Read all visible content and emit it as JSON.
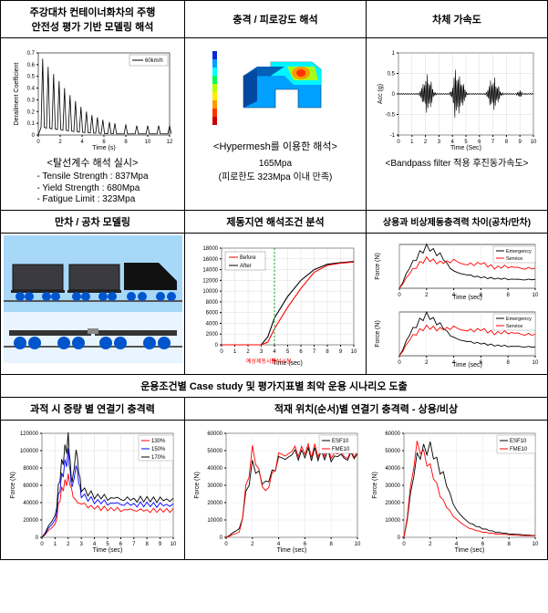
{
  "row1": {
    "c1": {
      "l1": "주강대차 컨테이너화차의 주행",
      "l2": "안전성 평가 기반 모델링 해석"
    },
    "c2": "충격 / 피로강도 해석",
    "c3": "차체 가속도"
  },
  "row2": {
    "c1": {
      "chart": {
        "type": "line",
        "legend": "60km/h",
        "xlabel": "Time (s)",
        "ylabel": "Derailment Coefficient",
        "xlim": [
          0,
          12
        ],
        "ylim": [
          0,
          0.7
        ],
        "xticks": [
          0,
          2,
          4,
          6,
          8,
          10,
          12
        ],
        "yticks": [
          0,
          0.1,
          0.2,
          0.3,
          0.4,
          0.5,
          0.6,
          0.7
        ],
        "peaks_x": [
          0.4,
          0.9,
          1.4,
          1.9,
          2.4,
          2.9,
          3.4,
          3.9,
          4.4,
          4.9,
          5.4,
          5.9,
          6.5,
          7,
          8,
          9,
          10,
          11,
          12
        ],
        "peaks_y": [
          0.65,
          0.58,
          0.52,
          0.46,
          0.4,
          0.34,
          0.29,
          0.24,
          0.2,
          0.17,
          0.15,
          0.13,
          0.11,
          0.1,
          0.09,
          0.08,
          0.08,
          0.08,
          0.08
        ],
        "line_color": "#000000",
        "label_fontsize": 7,
        "tick_fontsize": 6,
        "bg": "#ffffff",
        "grid": false
      },
      "caption": "<탈선계수 해석 실시>",
      "list": [
        "- Tensile Strength : 837Mpa",
        "- Yield Strength : 680Mpa",
        "- Fatigue Limit : 323Mpa"
      ]
    },
    "c2": {
      "fea": {
        "type": "contour-render",
        "bg": "#ffffff",
        "palette": [
          "#062bd6",
          "#00a0ff",
          "#00ffff",
          "#00ff55",
          "#b8ff00",
          "#ffee00",
          "#ff9900",
          "#ff3300",
          "#cc0000"
        ],
        "peak_region_color": "#ff3300",
        "body_color": "#00a0ff"
      },
      "caption": "<Hypermesh를 이용한 해석>",
      "value": "165Mpa",
      "note": "(피로한도 323Mpa 이내 만족)"
    },
    "c3": {
      "chart": {
        "type": "signal",
        "xlabel": "Time (Sec)",
        "ylabel": "Acc (g)",
        "xlim": [
          0,
          10
        ],
        "ylim": [
          -1,
          1
        ],
        "xticks": [
          0,
          1,
          2,
          3,
          4,
          5,
          6,
          7,
          8,
          9,
          10
        ],
        "yticks": [
          -1,
          -0.5,
          0,
          0.5,
          1
        ],
        "baseline": 0,
        "bursts": [
          {
            "t": 1.8,
            "amp": 0.25
          },
          {
            "t": 2.1,
            "amp": 0.55
          },
          {
            "t": 2.4,
            "amp": 0.35
          },
          {
            "t": 4.2,
            "amp": 0.7
          },
          {
            "t": 4.5,
            "amp": 0.5
          },
          {
            "t": 4.8,
            "amp": 0.3
          },
          {
            "t": 6.8,
            "amp": 0.35
          },
          {
            "t": 7.1,
            "amp": 0.45
          },
          {
            "t": 7.4,
            "amp": 0.2
          },
          {
            "t": 9.0,
            "amp": 0.1
          }
        ],
        "line_color": "#000000",
        "label_fontsize": 7,
        "bg": "#ffffff",
        "grid": true,
        "grid_color": "#d0d0d0"
      },
      "caption": "<Bandpass filter 적용 후진동가속도>"
    }
  },
  "row3": {
    "c1": "만차 / 공차 모델링",
    "c2": "제동지연 해석조건 분석",
    "c3": "상용과 비상제동충격력 차이(공차/만차)"
  },
  "row4": {
    "c1": {
      "render": {
        "type": "3d-model-render",
        "sky_color": "#a8d8f8",
        "ground": "#e8f4ff",
        "wagon_color": "#3a3a40",
        "bogie_color": "#0055cc",
        "track_color": "#555555",
        "views": 2
      }
    },
    "c2": {
      "chart": {
        "type": "line",
        "legend": [
          "Before",
          "After"
        ],
        "line_colors": [
          "#ff0000",
          "#000000"
        ],
        "xlabel": "Time (sec)",
        "ylabel": "",
        "xlim": [
          0,
          10
        ],
        "ylim": [
          0,
          18000
        ],
        "xticks": [
          0,
          1,
          2,
          3,
          4,
          5,
          6,
          7,
          8,
          9,
          10
        ],
        "yticks": [
          0,
          2000,
          4000,
          6000,
          8000,
          10000,
          12000,
          14000,
          16000,
          18000
        ],
        "marker_x": 4.0,
        "marker_color": "#00aa00",
        "series1_x": [
          0,
          3.0,
          3.5,
          4,
          5,
          6,
          7,
          8,
          9,
          10
        ],
        "series1_y": [
          0,
          0,
          500,
          3000,
          7000,
          10500,
          13500,
          14800,
          15200,
          15400
        ],
        "series2_x": [
          0,
          3.0,
          3.5,
          4,
          5,
          6,
          7,
          8,
          9,
          10
        ],
        "series2_y": [
          0,
          0,
          1500,
          5000,
          9000,
          12000,
          14000,
          15000,
          15300,
          15500
        ],
        "bg": "#ffffff",
        "grid": true,
        "grid_color": "#d0d0d0",
        "notes_color": "#ff0000",
        "note1": "예상제동시점",
        "note2": "분석시점"
      }
    },
    "c3": {
      "charts": [
        {
          "type": "line",
          "legend": [
            "Emergency",
            "Service"
          ],
          "line_colors": [
            "#000000",
            "#ff0000"
          ],
          "xlabel": "Time (sec)",
          "ylabel": "Force (N)",
          "xlim": [
            0,
            10
          ],
          "ylim": [
            0,
            4000
          ],
          "series1_y": [
            0,
            2500,
            3800,
            3000,
            1500,
            1200,
            1000,
            900,
            850,
            800,
            800
          ],
          "series2_y": [
            0,
            1800,
            2700,
            2300,
            2500,
            2100,
            2300,
            1900,
            2000,
            1850,
            1800
          ],
          "bg": "#ffffff",
          "grid": true,
          "grid_color": "#e0e0e0"
        },
        {
          "type": "line",
          "legend": [
            "Emergency",
            "Service"
          ],
          "line_colors": [
            "#000000",
            "#ff0000"
          ],
          "xlabel": "Time (sec)",
          "ylabel": "Force (N)",
          "xlim": [
            0,
            10
          ],
          "ylim": [
            0,
            5000
          ],
          "series1_y": [
            0,
            3200,
            4700,
            3500,
            2000,
            1600,
            1400,
            1200,
            1100,
            1050,
            1000
          ],
          "series2_y": [
            0,
            2400,
            3300,
            3000,
            3200,
            2800,
            3000,
            2600,
            2700,
            2500,
            2400
          ],
          "bg": "#ffffff",
          "grid": true,
          "grid_color": "#e0e0e0"
        }
      ]
    }
  },
  "row5": {
    "c1": "운용조건별 Case study 및 평가지표별 최악 운용 시나리오 도출"
  },
  "row6": {
    "c1": "과적 시 중량 별 연결기 충격력",
    "c2": "적재 위치(순서)별 연결기 충격력 - 상용/비상"
  },
  "row7": {
    "c1": {
      "chart": {
        "type": "line",
        "legend": [
          "130%",
          "150%",
          "170%"
        ],
        "line_colors": [
          "#ff0000",
          "#0000ff",
          "#000000"
        ],
        "xlabel": "Time (sec)",
        "ylabel": "Force (N)",
        "xlim": [
          0,
          10
        ],
        "ylim": [
          0,
          120000
        ],
        "xticks": [
          0,
          1,
          2,
          3,
          4,
          5,
          6,
          7,
          8,
          9,
          10
        ],
        "yticks": [
          0,
          20000,
          40000,
          60000,
          80000,
          100000,
          120000
        ],
        "series": [
          {
            "x": [
              0,
              1,
              1.5,
              2,
              2.5,
              3,
              4,
              5,
              6,
              7,
              8,
              9,
              10
            ],
            "y": [
              0,
              15000,
              55000,
              68000,
              42000,
              38000,
              34000,
              33000,
              32000,
              32000,
              31000,
              31000,
              31000
            ]
          },
          {
            "x": [
              0,
              1,
              1.5,
              2,
              2.3,
              2.6,
              3,
              4,
              5,
              6,
              7,
              8,
              9,
              10
            ],
            "y": [
              0,
              20000,
              70000,
              95000,
              55000,
              82000,
              48000,
              42000,
              40000,
              39000,
              38000,
              38000,
              37000,
              37000
            ]
          },
          {
            "x": [
              0,
              1,
              1.5,
              2,
              2.3,
              2.6,
              3,
              4,
              5,
              6,
              7,
              8,
              9,
              10
            ],
            "y": [
              0,
              25000,
              85000,
              112000,
              60000,
              100000,
              55000,
              48000,
              46000,
              45000,
              44000,
              44000,
              43000,
              43000
            ]
          }
        ],
        "bg": "#ffffff",
        "grid": true,
        "grid_color": "#d0d0d0"
      }
    },
    "c2": {
      "charts": [
        {
          "type": "line",
          "legend": [
            "ESF10",
            "FME10"
          ],
          "line_colors": [
            "#000000",
            "#ff0000"
          ],
          "xlabel": "Time (sec)",
          "ylabel": "Force (N)",
          "xlim": [
            0,
            10
          ],
          "ylim": [
            0,
            60000
          ],
          "yticks": [
            0,
            10000,
            20000,
            30000,
            40000,
            50000,
            60000
          ],
          "series1_y": [
            0,
            5000,
            42000,
            30000,
            44000,
            47000,
            48000,
            48000,
            47000,
            47000,
            47000
          ],
          "series2_y": [
            0,
            3000,
            50000,
            25000,
            46000,
            49000,
            50000,
            50000,
            49000,
            48000,
            48000
          ],
          "bg": "#ffffff",
          "grid": true,
          "grid_color": "#e0e0e0"
        },
        {
          "type": "line",
          "legend": [
            "ESF10",
            "FME10"
          ],
          "line_colors": [
            "#000000",
            "#ff0000"
          ],
          "xlabel": "Time (sec)",
          "ylabel": "Force (N)",
          "xlim": [
            0,
            10
          ],
          "ylim": [
            0,
            60000
          ],
          "yticks": [
            0,
            10000,
            20000,
            30000,
            40000,
            50000,
            60000
          ],
          "series1_y": [
            0,
            48000,
            52000,
            35000,
            15000,
            8000,
            5000,
            3000,
            2000,
            1500,
            1000
          ],
          "series2_y": [
            0,
            55000,
            40000,
            20000,
            10000,
            5000,
            3000,
            2000,
            1500,
            1000,
            800
          ],
          "bg": "#ffffff",
          "grid": true,
          "grid_color": "#e0e0e0"
        }
      ]
    }
  }
}
